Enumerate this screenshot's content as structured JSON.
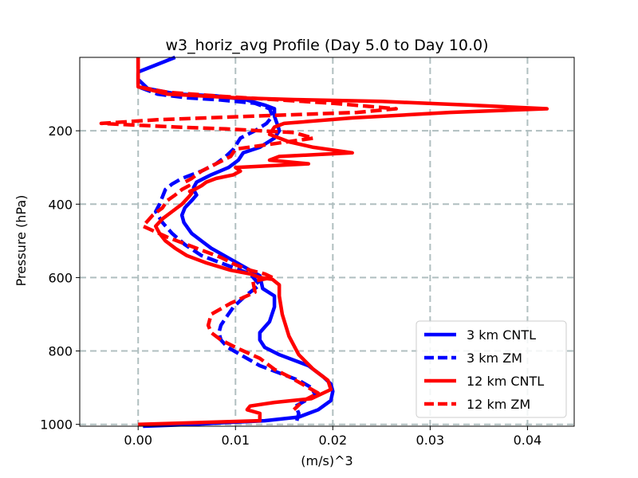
{
  "chart_data": {
    "type": "line",
    "title": "w3_horiz_avg Profile (Day 5.0 to Day 10.0)",
    "xlabel": "(m/s)^3",
    "ylabel": "Pressure (hPa)",
    "xlim": [
      -0.006,
      0.0448
    ],
    "ylim": [
      1005,
      0
    ],
    "xticks": [
      0.0,
      0.01,
      0.02,
      0.03,
      0.04
    ],
    "xtick_labels": [
      "0.00",
      "0.01",
      "0.02",
      "0.03",
      "0.04"
    ],
    "yticks": [
      200,
      400,
      600,
      800,
      1000
    ],
    "ytick_labels": [
      "200",
      "400",
      "600",
      "800",
      "1000"
    ],
    "grid": true,
    "legend_loc": "lower-right",
    "series": [
      {
        "name": "3 km CNTL",
        "color": "#0000ff",
        "style": "solid",
        "x": [
          0.0038,
          0.0,
          0.0,
          0.001,
          0.004,
          0.008,
          0.011,
          0.013,
          0.014,
          0.014,
          0.0142,
          0.0144,
          0.0145,
          0.014,
          0.0125,
          0.0108,
          0.0103,
          0.0093,
          0.0075,
          0.006,
          0.0057,
          0.0058,
          0.006,
          0.0055,
          0.0048,
          0.0045,
          0.0047,
          0.0055,
          0.0075,
          0.0105,
          0.0125,
          0.0128,
          0.014,
          0.014,
          0.0135,
          0.0125,
          0.0125,
          0.013,
          0.0145,
          0.0175,
          0.019,
          0.0198,
          0.02,
          0.0198,
          0.0185,
          0.0165,
          0.013,
          0.009,
          0.0055,
          0.0025,
          0.0005
        ],
        "y": [
          0,
          40,
          60,
          85,
          100,
          105,
          115,
          130,
          140,
          160,
          175,
          190,
          200,
          220,
          245,
          260,
          280,
          300,
          320,
          340,
          355,
          365,
          375,
          390,
          410,
          430,
          450,
          480,
          520,
          565,
          595,
          630,
          650,
          680,
          720,
          750,
          770,
          790,
          810,
          840,
          870,
          890,
          910,
          935,
          960,
          980,
          990,
          995,
          1000,
          1003,
          1005
        ]
      },
      {
        "name": "3 km ZM",
        "color": "#0000ff",
        "style": "dashed",
        "x": [
          0.0,
          0.0,
          0.002,
          0.005,
          0.008,
          0.012,
          0.0135,
          0.0138,
          0.0132,
          0.012,
          0.0105,
          0.0098,
          0.009,
          0.008,
          0.0065,
          0.0045,
          0.0035,
          0.0028,
          0.0025,
          0.0022,
          0.0018,
          0.0025,
          0.0035,
          0.0048,
          0.0065,
          0.009,
          0.0115,
          0.0125,
          0.011,
          0.0098,
          0.009,
          0.0085,
          0.0083,
          0.0085,
          0.0092,
          0.0105,
          0.0125,
          0.0145,
          0.0165,
          0.0178,
          0.0182,
          0.0172,
          0.0162,
          0.0165,
          0.0163
        ],
        "y": [
          0,
          80,
          100,
          110,
          115,
          125,
          140,
          160,
          180,
          200,
          220,
          250,
          270,
          290,
          310,
          330,
          345,
          360,
          380,
          400,
          420,
          450,
          480,
          510,
          540,
          565,
          590,
          620,
          650,
          680,
          710,
          730,
          750,
          770,
          790,
          810,
          840,
          860,
          880,
          900,
          920,
          935,
          950,
          970,
          990
        ]
      },
      {
        "name": "12 km CNTL",
        "color": "#ff0000",
        "style": "solid",
        "x": [
          0.0,
          0.0,
          0.003,
          0.01,
          0.016,
          0.025,
          0.034,
          0.042,
          0.032,
          0.022,
          0.015,
          0.014,
          0.0135,
          0.0155,
          0.018,
          0.022,
          0.0145,
          0.0135,
          0.0175,
          0.01,
          0.0105,
          0.0098,
          0.008,
          0.007,
          0.0065,
          0.0058,
          0.0053,
          0.0055,
          0.0052,
          0.0045,
          0.0035,
          0.0025,
          0.0018,
          0.0022,
          0.0028,
          0.0038,
          0.005,
          0.007,
          0.0095,
          0.0115,
          0.0125,
          0.0138,
          0.0145,
          0.0145,
          0.0148,
          0.0155,
          0.0165,
          0.018,
          0.0195,
          0.0198,
          0.0178,
          0.014,
          0.0115,
          0.0112,
          0.0125,
          0.0125,
          0.0
        ],
        "y": [
          0,
          80,
          100,
          110,
          115,
          120,
          130,
          140,
          150,
          165,
          180,
          190,
          210,
          230,
          245,
          260,
          270,
          280,
          290,
          300,
          310,
          320,
          330,
          340,
          350,
          360,
          365,
          370,
          380,
          400,
          420,
          440,
          460,
          480,
          500,
          520,
          540,
          560,
          580,
          590,
          600,
          605,
          620,
          650,
          700,
          760,
          810,
          850,
          880,
          905,
          930,
          940,
          950,
          960,
          970,
          990,
          1000
        ]
      },
      {
        "name": "12 km ZM",
        "color": "#ff0000",
        "style": "dashed",
        "x": [
          0.0,
          0.0,
          0.003,
          0.008,
          0.014,
          0.02,
          0.0265,
          0.0225,
          0.012,
          0.002,
          -0.0038,
          0.0,
          0.004,
          0.009,
          0.016,
          0.018,
          0.01,
          0.0095,
          0.008,
          0.0065,
          0.0055,
          0.0048,
          0.0052,
          0.0045,
          0.0038,
          0.003,
          0.0025,
          0.0015,
          0.0005,
          0.003,
          0.006,
          0.0085,
          0.01,
          0.0115,
          0.013,
          0.0138,
          0.0118,
          0.012,
          0.0095,
          0.0075,
          0.0072,
          0.0075,
          0.0085,
          0.01,
          0.0125,
          0.014,
          0.0155,
          0.0165,
          0.0175,
          0.0185,
          0.017,
          0.016
        ],
        "y": [
          0,
          80,
          95,
          105,
          115,
          125,
          140,
          150,
          160,
          170,
          180,
          185,
          190,
          195,
          205,
          220,
          250,
          270,
          290,
          310,
          330,
          340,
          350,
          360,
          375,
          390,
          410,
          430,
          460,
          490,
          520,
          545,
          565,
          580,
          590,
          600,
          610,
          640,
          670,
          700,
          730,
          750,
          770,
          790,
          820,
          850,
          870,
          885,
          900,
          915,
          935,
          960
        ]
      }
    ]
  }
}
